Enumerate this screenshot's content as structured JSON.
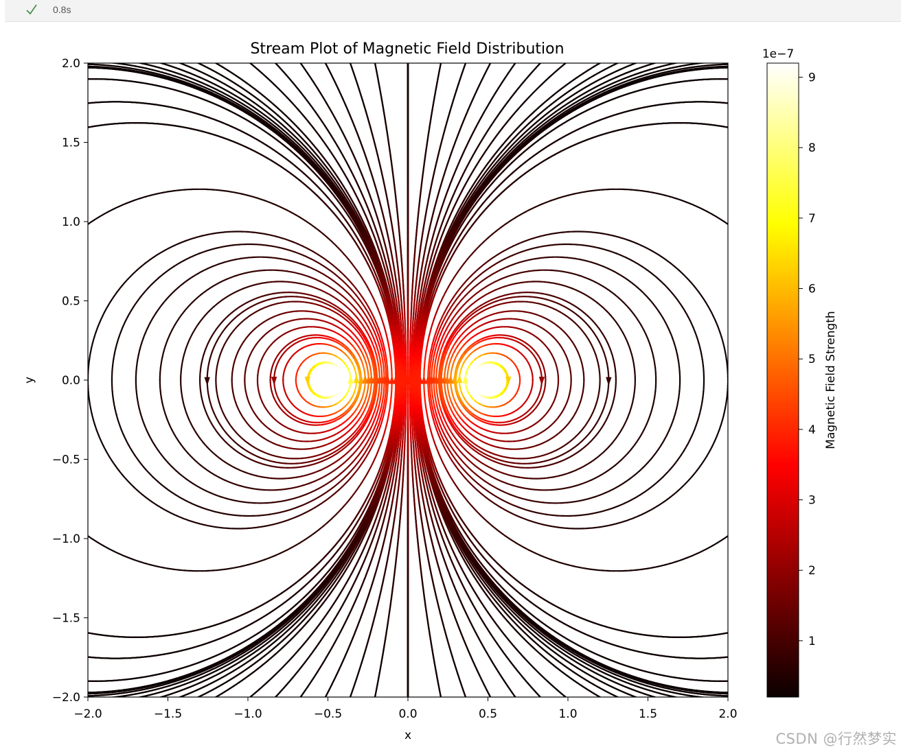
{
  "cell": {
    "status_icon": "check-icon",
    "status_color": "#3c8a3c",
    "elapsed": "0.8s"
  },
  "chart_data": {
    "type": "streamplot",
    "title": "Stream Plot of Magnetic Field Distribution",
    "xlabel": "x",
    "ylabel": "y",
    "xlim": [
      -2.0,
      2.0
    ],
    "ylim": [
      -2.0,
      2.0
    ],
    "xticks": [
      -2.0,
      -1.5,
      -1.0,
      -0.5,
      0.0,
      0.5,
      1.0,
      1.5,
      2.0
    ],
    "yticks": [
      -2.0,
      -1.5,
      -1.0,
      -0.5,
      0.0,
      0.5,
      1.0,
      1.5,
      2.0
    ],
    "xtick_labels": [
      "−2.0",
      "−1.5",
      "−1.0",
      "−0.5",
      "0.0",
      "0.5",
      "1.0",
      "1.5",
      "2.0"
    ],
    "ytick_labels": [
      "−2.0",
      "−1.5",
      "−1.0",
      "−0.5",
      "0.0",
      "0.5",
      "1.0",
      "1.5",
      "2.0"
    ],
    "field": {
      "description": "Field of two antiparallel line currents (magnetic dipole), strength colour-mapped",
      "sources": [
        {
          "x": -0.5,
          "y": 0.0,
          "current": 1
        },
        {
          "x": 0.5,
          "y": 0.0,
          "current": -1
        }
      ],
      "strength_scale": 1e-07
    },
    "colorbar": {
      "label": "Magnetic Field Strength",
      "colormap": "hot",
      "min": 0.2,
      "max": 9.2,
      "ticks": [
        1,
        2,
        3,
        4,
        5,
        6,
        7,
        8,
        9
      ],
      "tick_labels": [
        "1",
        "2",
        "3",
        "4",
        "5",
        "6",
        "7",
        "8",
        "9"
      ],
      "offset_label": "1e−7"
    }
  },
  "watermark": "CSDN @行然梦实"
}
